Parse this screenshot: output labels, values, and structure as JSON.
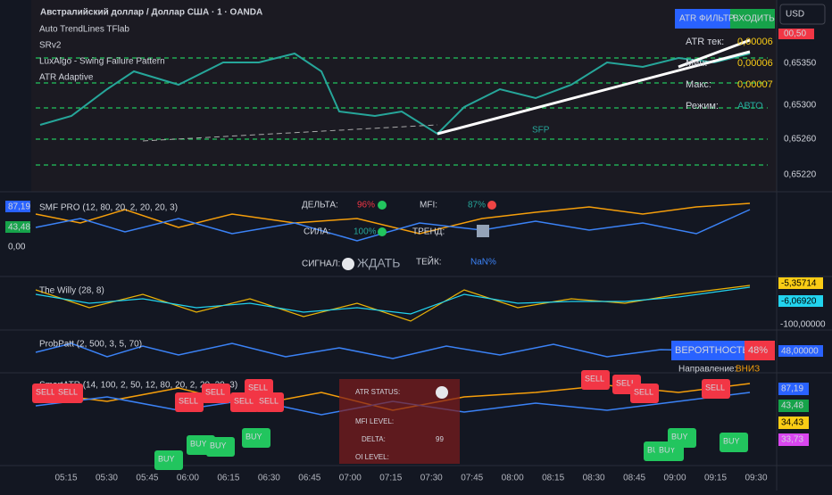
{
  "header": {
    "symbol": "Австралийский доллар / Доллар США · 1 · OANDA",
    "indicators": [
      "Auto TrendLines TFlab",
      "SRv2",
      "LuxAlgo - Swing Failure Pattern",
      "ATR Adaptive"
    ],
    "currency": "USD"
  },
  "main_panel": {
    "price_labels": [
      "00,50",
      "0,65350",
      "0,65300",
      "0,65260",
      "0,65220"
    ],
    "sfp_label": "SFP",
    "atr_box": {
      "title": "ATR ФИЛЬТР",
      "signal": "ВХОДИТЬ",
      "rows": [
        [
          "ATR тек:",
          "0,00006"
        ],
        [
          "Мин:",
          "0,00006"
        ],
        [
          "Макс:",
          "0,00007"
        ],
        [
          "Режим:",
          "АВТО"
        ]
      ]
    }
  },
  "smf_panel": {
    "title": "SMF PRO (12, 80, 20, 2, 20, 20, 3)",
    "axis_labels": [
      "87,19",
      "43,48",
      "0,00"
    ],
    "table": {
      "delta_label": "ДЕЛЬТА:",
      "delta": "96%",
      "mfi_label": "MFI:",
      "mfi": "87%",
      "strength_label": "СИЛА:",
      "strength": "100%",
      "trend_label": "ТРЕНД:",
      "signal_label": "СИГНАЛ:",
      "signal": "ЖДАТЬ",
      "take_label": "ТЕЙК:",
      "take": "NaN%"
    }
  },
  "willy_panel": {
    "title": "The Willy (28, 8)",
    "axis_labels": [
      "-5,35714",
      "-6,06920",
      "-100,00000"
    ]
  },
  "prob_panel": {
    "title": "ProbPatt (2, 500, 3, 5, 70)",
    "probability_label": "ВЕРОЯТНОСТЬ",
    "probability": "48%",
    "axis_label": "48,00000",
    "direction_label": "Направление:",
    "direction": "ВНИЗ"
  },
  "smart_panel": {
    "title": "SmartATR (14, 100, 2, 50, 12, 80, 20, 2, 20, 20, 3)",
    "axis_labels": [
      "87,19",
      "43,48",
      "34,43",
      "33,73"
    ],
    "status": {
      "atr_status": "ATR STATUS:",
      "mfi_level": "MFI LEVEL:",
      "delta": "DELTA:",
      "delta_value": "99",
      "oi_level": "OI LEVEL:"
    },
    "signals": [
      "SELL",
      "SELL",
      "SELL",
      "SELL",
      "SELL",
      "SELL",
      "SELL",
      "SELL",
      "SELL",
      "SELL",
      "SELL",
      "BUY",
      "BUY",
      "BUY",
      "BUY",
      "BUY",
      "BUY",
      "BUY",
      "BUY"
    ]
  },
  "time_axis": [
    "05:15",
    "05:30",
    "05:45",
    "06:00",
    "06:15",
    "06:30",
    "06:45",
    "07:00",
    "07:15",
    "07:30",
    "07:45",
    "08:00",
    "08:15",
    "08:30",
    "08:45",
    "09:00",
    "09:15",
    "09:30"
  ]
}
